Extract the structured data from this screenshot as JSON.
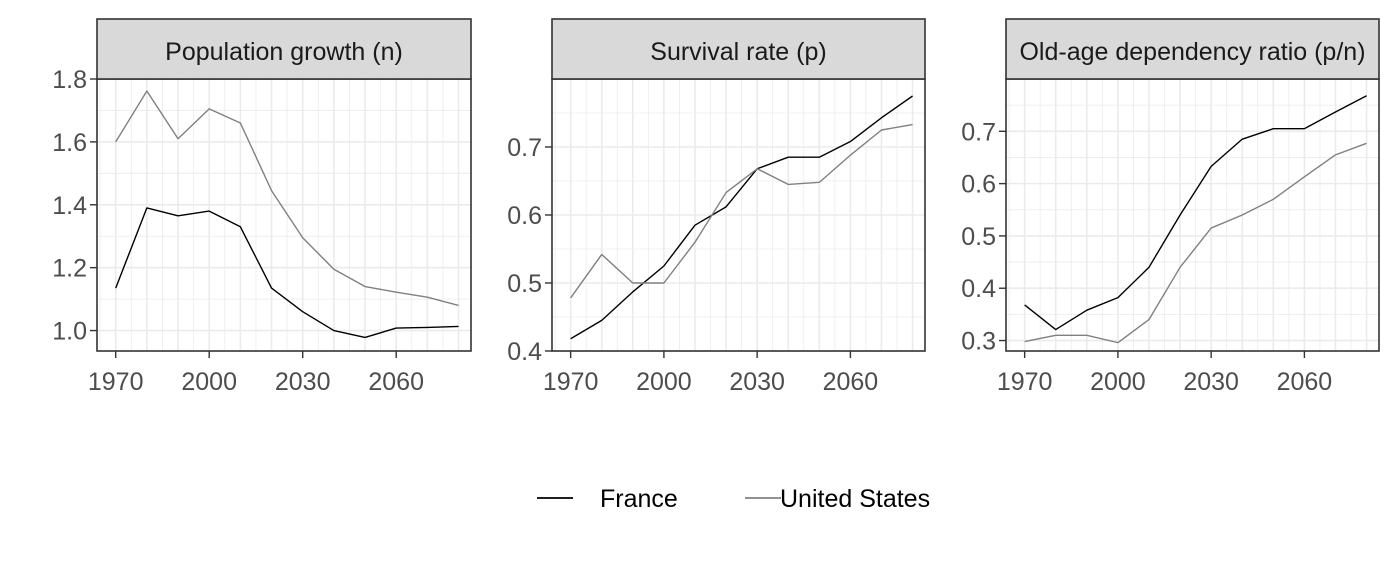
{
  "chart_data": [
    {
      "type": "line",
      "title": "Population growth (n)",
      "x": [
        1970,
        1980,
        1990,
        2000,
        2010,
        2020,
        2030,
        2040,
        2050,
        2060,
        2070,
        2080
      ],
      "xlim": [
        1964,
        2084
      ],
      "ylim": [
        0.935,
        1.8
      ],
      "x_ticks": [
        1970,
        2000,
        2030,
        2060
      ],
      "x_tick_labels": [
        "1970",
        "2000",
        "2030",
        "2060"
      ],
      "y_ticks": [
        1.0,
        1.2,
        1.4,
        1.6,
        1.8
      ],
      "y_tick_labels": [
        "1.0",
        "1.2",
        "1.4",
        "1.6",
        "1.8"
      ],
      "grid": true,
      "series": [
        {
          "name": "France",
          "color": "#000000",
          "values": [
            1.135,
            1.39,
            1.365,
            1.38,
            1.33,
            1.135,
            1.06,
            1.0,
            0.978,
            1.008,
            1.01,
            1.013
          ]
        },
        {
          "name": "United States",
          "color": "#808080",
          "values": [
            1.6,
            1.762,
            1.61,
            1.705,
            1.66,
            1.445,
            1.295,
            1.195,
            1.14,
            1.122,
            1.106,
            1.08
          ]
        }
      ]
    },
    {
      "type": "line",
      "title": "Survival rate (p)",
      "x": [
        1970,
        1980,
        1990,
        2000,
        2010,
        2020,
        2030,
        2040,
        2050,
        2060,
        2070,
        2080
      ],
      "xlim": [
        1964,
        2084
      ],
      "ylim": [
        0.4,
        0.8
      ],
      "x_ticks": [
        1970,
        2000,
        2030,
        2060
      ],
      "x_tick_labels": [
        "1970",
        "2000",
        "2030",
        "2060"
      ],
      "y_ticks": [
        0.4,
        0.5,
        0.6,
        0.7
      ],
      "y_tick_labels": [
        "0.4",
        "0.5",
        "0.6",
        "0.7"
      ],
      "grid": true,
      "series": [
        {
          "name": "France",
          "color": "#000000",
          "values": [
            0.418,
            0.445,
            0.487,
            0.525,
            0.585,
            0.612,
            0.668,
            0.685,
            0.685,
            0.708,
            0.743,
            0.775
          ]
        },
        {
          "name": "United States",
          "color": "#808080",
          "values": [
            0.478,
            0.542,
            0.5,
            0.5,
            0.56,
            0.633,
            0.668,
            0.645,
            0.648,
            0.688,
            0.725,
            0.733
          ]
        }
      ]
    },
    {
      "type": "line",
      "title": "Old-age dependency ratio (p/n)",
      "x": [
        1970,
        1980,
        1990,
        2000,
        2010,
        2020,
        2030,
        2040,
        2050,
        2060,
        2070,
        2080
      ],
      "xlim": [
        1964,
        2084
      ],
      "ylim": [
        0.28,
        0.8
      ],
      "x_ticks": [
        1970,
        2000,
        2030,
        2060
      ],
      "x_tick_labels": [
        "1970",
        "2000",
        "2030",
        "2060"
      ],
      "y_ticks": [
        0.3,
        0.4,
        0.5,
        0.6,
        0.7
      ],
      "y_tick_labels": [
        "0.3",
        "0.4",
        "0.5",
        "0.6",
        "0.7"
      ],
      "grid": true,
      "series": [
        {
          "name": "France",
          "color": "#000000",
          "values": [
            0.368,
            0.321,
            0.358,
            0.382,
            0.44,
            0.54,
            0.633,
            0.685,
            0.705,
            0.705,
            0.737,
            0.768
          ]
        },
        {
          "name": "United States",
          "color": "#808080",
          "values": [
            0.298,
            0.31,
            0.31,
            0.296,
            0.34,
            0.44,
            0.515,
            0.54,
            0.57,
            0.613,
            0.655,
            0.677
          ]
        }
      ]
    }
  ],
  "legend": {
    "placement": "bottom",
    "items": [
      {
        "label": "France",
        "color": "#000000"
      },
      {
        "label": "United States",
        "color": "#808080"
      }
    ]
  }
}
